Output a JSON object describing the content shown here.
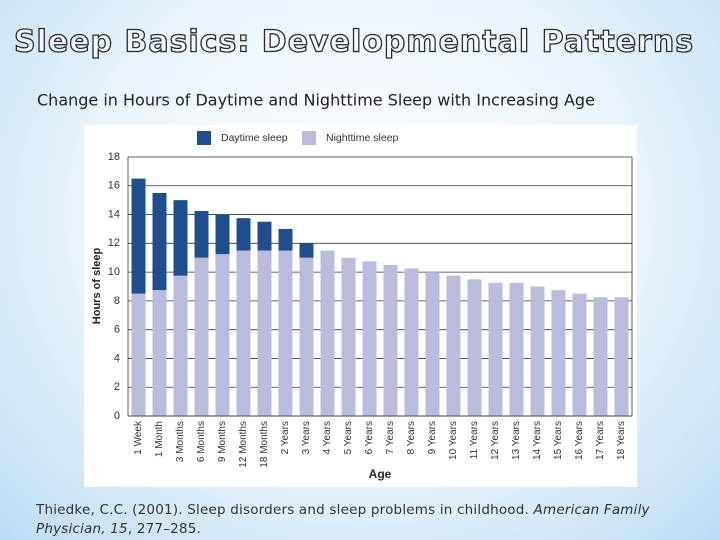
{
  "slide": {
    "title": "Sleep Basics: Developmental Patterns",
    "subtitle": "Change in Hours of Daytime and Nighttime Sleep with Increasing Age",
    "citation": [
      "Thiedke, C.C. (2001). Sleep disorders and sleep problems in childhood. ",
      "American Family Physician, 15",
      ", 277–285."
    ]
  },
  "chart_data": {
    "type": "stacked-bar",
    "x_label": "Age",
    "y_label": "Hours of sleep",
    "categories": [
      "1 Week",
      "1 Month",
      "3 Months",
      "6 Months",
      "9 Months",
      "12 Months",
      "18 Months",
      "2 Years",
      "3 Years",
      "4 Years",
      "5 Years",
      "6 Years",
      "7 Years",
      "8 Years",
      "9 Years",
      "10 Years",
      "11 Years",
      "12 Years",
      "13 Years",
      "14 Years",
      "15 Years",
      "16 Years",
      "17 Years",
      "18 Years"
    ],
    "series": [
      {
        "name": "Nighttime sleep",
        "color": "#b9bddb",
        "values": [
          8.5,
          8.75,
          9.75,
          11,
          11.25,
          11.5,
          11.5,
          11.5,
          11,
          11.5,
          11,
          10.75,
          10.5,
          10.25,
          10,
          9.75,
          9.5,
          9.25,
          9.25,
          9,
          8.75,
          8.5,
          8.25,
          8.25
        ]
      },
      {
        "name": "Daytime sleep",
        "color": "#1f4e8c",
        "values": [
          8,
          6.75,
          5.25,
          3.25,
          2.75,
          2.25,
          2,
          1.5,
          1,
          0,
          0,
          0,
          0,
          0,
          0,
          0,
          0,
          0,
          0,
          0,
          0,
          0,
          0,
          0
        ]
      }
    ],
    "ylim": [
      0,
      18
    ],
    "yticks": [
      0,
      2,
      4,
      6,
      8,
      10,
      12,
      14,
      16,
      18
    ],
    "grid": true,
    "legend": "top"
  }
}
